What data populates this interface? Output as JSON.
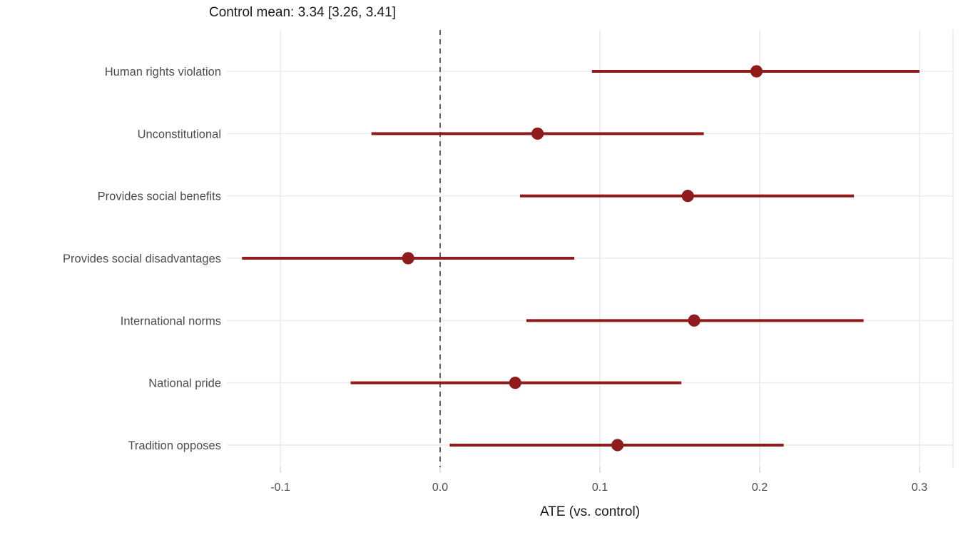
{
  "chart_data": {
    "type": "scatter",
    "subtype": "forest-plot-with-95ci",
    "title": "Control mean: 3.34 [3.26, 3.41]",
    "xlabel": "ATE (vs. control)",
    "ylabel": "",
    "x_tick_values": [
      -0.1,
      0.0,
      0.1,
      0.2,
      0.3
    ],
    "x_tick_labels": [
      "-0.1",
      "0.0",
      "0.1",
      "0.2",
      "0.3"
    ],
    "xlim": [
      -0.1335,
      0.321
    ],
    "reference_line_x": 0,
    "grid": "major-only",
    "legend": "none",
    "rows": [
      {
        "label": "Human rights violation",
        "estimate": 0.198,
        "ci_low": 0.095,
        "ci_high": 0.3
      },
      {
        "label": "Unconstitutional",
        "estimate": 0.061,
        "ci_low": -0.043,
        "ci_high": 0.165
      },
      {
        "label": "Provides social benefits",
        "estimate": 0.155,
        "ci_low": 0.05,
        "ci_high": 0.259
      },
      {
        "label": "Provides social disadvantages",
        "estimate": -0.02,
        "ci_low": -0.124,
        "ci_high": 0.084
      },
      {
        "label": "International norms",
        "estimate": 0.159,
        "ci_low": 0.054,
        "ci_high": 0.265
      },
      {
        "label": "National pride",
        "estimate": 0.047,
        "ci_low": -0.056,
        "ci_high": 0.151
      },
      {
        "label": "Tradition opposes",
        "estimate": 0.111,
        "ci_low": 0.006,
        "ci_high": 0.215
      }
    ]
  },
  "colors": {
    "ci": "#8f1b1b",
    "reference_line": "#5f5f5f",
    "gridline": "#ececec",
    "tick_mark": "#d9d9d9",
    "axis_text": "#4d4d4d",
    "title_text": "#1a1a1a"
  }
}
